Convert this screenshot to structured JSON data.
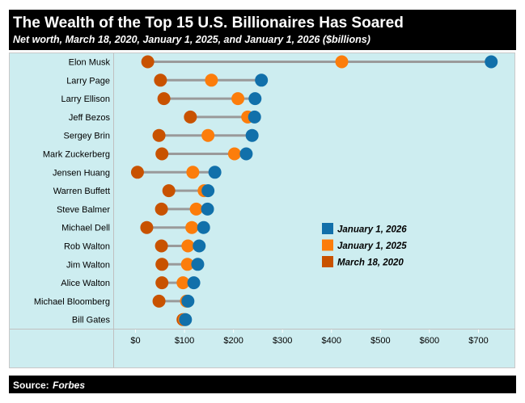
{
  "header": {
    "title": "The Wealth of the Top 15 U.S. Billionaires Has Soared",
    "subtitle": "Net worth, March 18, 2020, January 1, 2025, and January 1, 2026 ($billions)"
  },
  "footer": {
    "source_label": "Source:",
    "source_name": "Forbes"
  },
  "colors": {
    "background": "#cdedf0",
    "connector": "#9a9a9a",
    "jan2026": "#1170aa",
    "jan2025": "#fc7d0b",
    "mar2020": "#c85200"
  },
  "chart_data": {
    "type": "dot-plot",
    "title": "The Wealth of the Top 15 U.S. Billionaires Has Soared",
    "subtitle": "Net worth, March 18, 2020, January 1, 2025, and January 1, 2026 ($billions)",
    "xlabel": "",
    "ylabel": "",
    "xlim": [
      0,
      760
    ],
    "x_ticks": [
      0,
      100,
      200,
      300,
      400,
      500,
      600,
      700
    ],
    "x_tick_labels": [
      "$0",
      "$100",
      "$200",
      "$300",
      "$400",
      "$500",
      "$600",
      "$700"
    ],
    "legend_position": "center-right",
    "categories": [
      "Elon Musk",
      "Larry Page",
      "Larry Ellison",
      "Jeff Bezos",
      "Sergey Brin",
      "Mark Zuckerberg",
      "Jensen Huang",
      "Warren Buffett",
      "Steve Balmer",
      "Michael Dell",
      "Rob Walton",
      "Jim Walton",
      "Alice Walton",
      "Michael Bloomberg",
      "Bill Gates"
    ],
    "series": [
      {
        "name": "January 1, 2026",
        "key": "jan2026",
        "values": [
          726,
          257,
          244,
          243,
          238,
          226,
          162,
          148,
          147,
          139,
          130,
          127,
          119,
          107,
          102
        ]
      },
      {
        "name": "January 1, 2025",
        "key": "jan2025",
        "values": [
          421,
          155,
          209,
          229,
          148,
          202,
          117,
          140,
          124,
          115,
          107,
          106,
          97,
          104,
          100
        ]
      },
      {
        "name": "March 18, 2020",
        "key": "mar2020",
        "values": [
          25,
          51,
          58,
          112,
          48,
          54,
          4,
          68,
          53,
          23,
          53,
          54,
          54,
          48,
          97
        ]
      }
    ]
  }
}
